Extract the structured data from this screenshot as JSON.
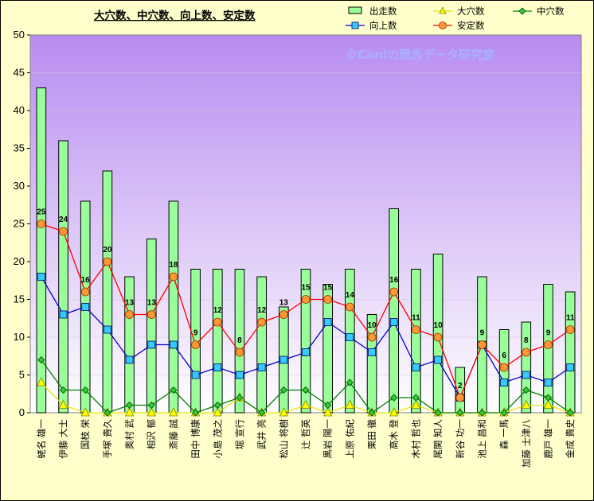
{
  "chart_data": {
    "type": "bar",
    "title": "大穴数、中穴数、向上数、安定数",
    "watermark": "©Caniの競馬データ研究室",
    "ylim": [
      0,
      50
    ],
    "yticks": [
      0,
      5,
      10,
      15,
      20,
      25,
      30,
      35,
      40,
      45,
      50
    ],
    "categories": [
      "蛯名 雄一",
      "伊藤 大士",
      "国枝 栄",
      "手塚 貴久",
      "奥村 武",
      "相沢 郁",
      "斎藤 誠",
      "田中 博康",
      "小島 茂之",
      "堀 宣行",
      "武井 亮",
      "松山 将樹",
      "辻 哲英",
      "黒岩 陽一",
      "上原 佑紀",
      "栗田 徹",
      "高木 登",
      "木村 哲也",
      "尾関 知人",
      "新谷 功一",
      "池上 昌和",
      "森 一馬",
      "加藤 士津八",
      "鹿戸 雄一",
      "金成 貴史"
    ],
    "series": [
      {
        "name": "出走数",
        "kind": "bar",
        "color": "#99ff99",
        "values": [
          43,
          36,
          28,
          32,
          18,
          23,
          28,
          19,
          19,
          19,
          18,
          14,
          19,
          17,
          19,
          13,
          27,
          19,
          21,
          6,
          18,
          11,
          12,
          17,
          16
        ]
      },
      {
        "name": "大穴数",
        "kind": "line",
        "color": "#ffff00",
        "values": [
          4,
          1,
          0,
          0,
          0,
          0,
          0,
          0,
          0,
          2,
          0,
          0,
          1,
          0,
          1,
          0,
          0,
          1,
          0,
          0,
          0,
          0,
          1,
          1,
          0
        ]
      },
      {
        "name": "中穴数",
        "kind": "line",
        "color": "#008000",
        "values": [
          7,
          3,
          3,
          0,
          1,
          1,
          3,
          0,
          1,
          2,
          0,
          3,
          3,
          1,
          4,
          0,
          2,
          2,
          0,
          0,
          0,
          0,
          3,
          2,
          0
        ]
      },
      {
        "name": "向上数",
        "kind": "line",
        "color": "#0000cc",
        "values": [
          18,
          13,
          14,
          11,
          7,
          9,
          9,
          5,
          6,
          5,
          6,
          7,
          8,
          12,
          10,
          8,
          12,
          6,
          7,
          2,
          9,
          4,
          5,
          4,
          6
        ]
      },
      {
        "name": "安定数",
        "kind": "line",
        "color": "#ff0000",
        "values": [
          25,
          24,
          16,
          20,
          13,
          13,
          18,
          9,
          12,
          8,
          12,
          13,
          15,
          15,
          14,
          10,
          16,
          11,
          10,
          2,
          9,
          6,
          8,
          9,
          11
        ]
      }
    ]
  }
}
